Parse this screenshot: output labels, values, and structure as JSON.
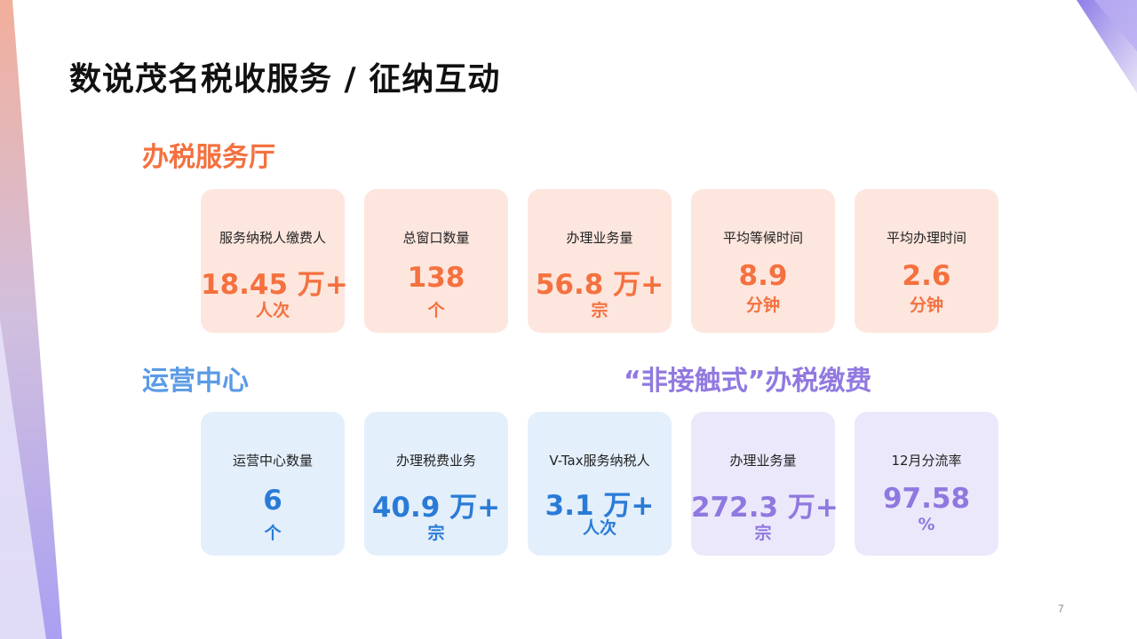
{
  "page": {
    "title": "数说茂名税收服务 / 征纳互动",
    "page_number": "7"
  },
  "sections": {
    "hall": "办税服务厅",
    "ops": "运营中心",
    "contactless": "“非接触式”办税缴费"
  },
  "hall_cards": [
    {
      "label": "服务纳税人缴费人",
      "value": "18.45 万+",
      "unit": "人次"
    },
    {
      "label": "总窗口数量",
      "value": "138",
      "unit": "个"
    },
    {
      "label": "办理业务量",
      "value": "56.8 万+",
      "unit": "宗"
    },
    {
      "label": "平均等候时间",
      "value": "8.9",
      "unit": "分钟"
    },
    {
      "label": "平均办理时间",
      "value": "2.6",
      "unit": "分钟"
    }
  ],
  "ops_cards": [
    {
      "label": "运营中心数量",
      "value": "6",
      "unit": "个"
    },
    {
      "label": "办理税费业务",
      "value": "40.9 万+",
      "unit": "宗"
    },
    {
      "label": "V-Tax服务纳税人",
      "value": "3.1 万+",
      "unit": "人次"
    }
  ],
  "contactless_cards": [
    {
      "label": "办理业务量",
      "value": "272.3 万+",
      "unit": "宗"
    },
    {
      "label": "12月分流率",
      "value": "97.58",
      "unit": "%"
    }
  ],
  "colors": {
    "orange": "#f4713f",
    "blue": "#2a7bd7",
    "light_blue": "#5b9be6",
    "purple": "#8f78df"
  }
}
